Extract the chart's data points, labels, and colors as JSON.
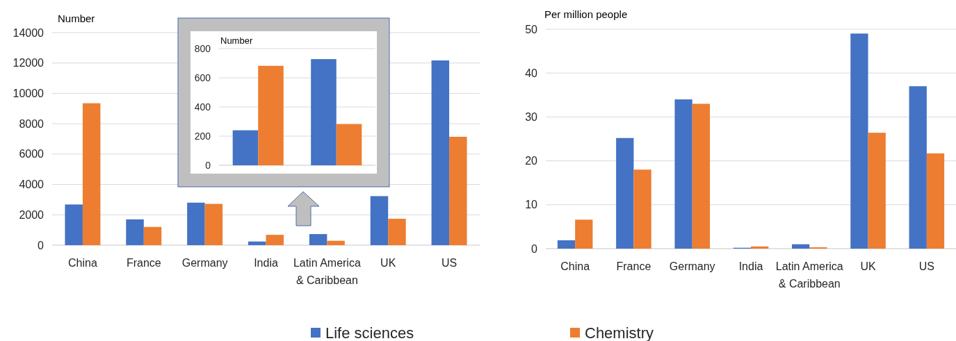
{
  "chart_data": [
    {
      "type": "bar",
      "ylabel": "Number",
      "categories": [
        "China",
        "France",
        "Germany",
        "India",
        "Latin America & Caribbean",
        "UK",
        "US"
      ],
      "series": [
        {
          "name": "Life sciences",
          "color": "#4472c4",
          "values": [
            2680,
            1700,
            2800,
            240,
            730,
            3230,
            12170
          ]
        },
        {
          "name": "Chemistry",
          "color": "#ed7d31",
          "values": [
            9350,
            1200,
            2720,
            680,
            290,
            1740,
            7140
          ]
        }
      ],
      "ylim": [
        0,
        14000
      ],
      "yticks": [
        0,
        2000,
        4000,
        6000,
        8000,
        10000,
        12000,
        14000
      ],
      "grid": "y",
      "legend": "bottom"
    },
    {
      "type": "bar",
      "ylabel": "Number",
      "categories": [
        null,
        null
      ],
      "series": [
        {
          "color": "#4472c4",
          "values": [
            240,
            728
          ]
        },
        {
          "color": "#ed7d31",
          "values": [
            682,
            283
          ]
        }
      ],
      "ylim": [
        0,
        800
      ],
      "yticks": [
        0,
        200,
        400,
        600,
        800
      ],
      "grid": "y"
    },
    {
      "type": "bar",
      "ylabel": "Per million people",
      "categories": [
        "China",
        "France",
        "Germany",
        "India",
        "Latin America & Caribbean",
        "UK",
        "US"
      ],
      "series": [
        {
          "color": "#4472c4",
          "values": [
            1.9,
            25.2,
            34.0,
            0.2,
            1.0,
            49.0,
            37.0
          ]
        },
        {
          "color": "#ed7d31",
          "values": [
            6.6,
            18.0,
            33.0,
            0.5,
            0.3,
            26.4,
            21.7
          ]
        }
      ],
      "ylim": [
        0,
        50
      ],
      "yticks": [
        0,
        10,
        20,
        30,
        40,
        50
      ],
      "grid": "y"
    }
  ]
}
